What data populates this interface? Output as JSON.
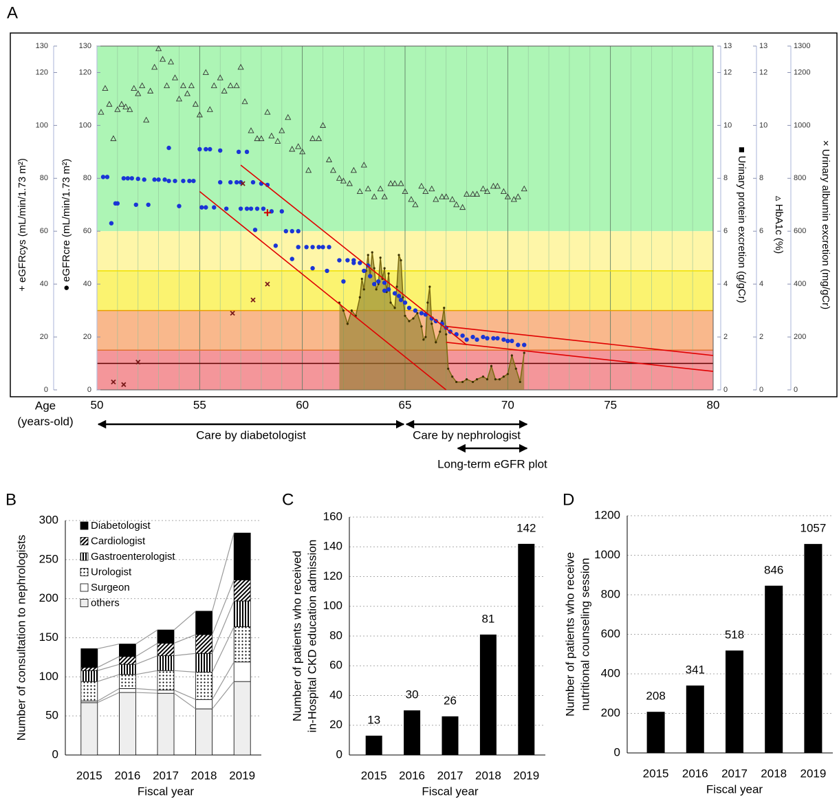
{
  "chart_data": [
    {
      "type": "scatter",
      "panel": "A",
      "xlabel": [
        "Age",
        "(years-old)"
      ],
      "xlim": [
        50,
        80
      ],
      "xticks": [
        50,
        55,
        60,
        65,
        70,
        75,
        80
      ],
      "xminor": 1,
      "y_axes": [
        {
          "label": "+ eGFRcys (mL/min/1.73 m²)",
          "color": "#e00000",
          "lim": [
            0,
            130
          ],
          "ticks": [
            0,
            20,
            40,
            60,
            80,
            100,
            120,
            130
          ],
          "side": "left"
        },
        {
          "label": "● eGFRcre (mL/min/1.73 m²)",
          "color": "#1a35d6",
          "lim": [
            0,
            130
          ],
          "ticks": [
            0,
            20,
            40,
            60,
            80,
            100,
            120,
            130
          ],
          "side": "left"
        },
        {
          "label": "■ Urinary protein excretion (g/gCr)",
          "color": "#7a6a10",
          "lim": [
            0,
            13
          ],
          "ticks": [
            0,
            2,
            4,
            6,
            8,
            10,
            12,
            13
          ],
          "side": "right"
        },
        {
          "label": "▵ HbA1c (%)",
          "color": "#000000",
          "lim": [
            0,
            13
          ],
          "ticks": [
            0,
            2,
            4,
            6,
            8,
            10,
            12,
            13
          ],
          "side": "right"
        },
        {
          "label": "× Urinary albumin excretion (mg/gCr)",
          "color": "#000000",
          "lim": [
            0,
            1300
          ],
          "ticks": [
            0,
            200,
            400,
            600,
            800,
            1000,
            1200,
            1300
          ],
          "side": "right"
        }
      ],
      "bands": [
        {
          "from": 60,
          "to": 130,
          "color": "#adf5b5"
        },
        {
          "from": 45,
          "to": 60,
          "color": "#fef6a8"
        },
        {
          "from": 30,
          "to": 45,
          "color": "#fbf370"
        },
        {
          "from": 15,
          "to": 30,
          "color": "#f9b88c"
        },
        {
          "from": 0,
          "to": 15,
          "color": "#f4969a"
        }
      ],
      "hlines": [
        {
          "value": 45,
          "color": "#f0e000"
        },
        {
          "value": 30,
          "color": "#e8a000"
        },
        {
          "value": 15,
          "color": "#e07030"
        },
        {
          "value": 10,
          "color": "#600000"
        }
      ],
      "series": [
        {
          "marker": "area",
          "color": "#7a6a10",
          "axis": 2,
          "x": [
            61.8,
            62,
            62.2,
            62.4,
            62.6,
            62.8,
            62.9,
            63,
            63.1,
            63.2,
            63.3,
            63.4,
            63.5,
            63.6,
            63.7,
            63.8,
            63.9,
            64,
            64.1,
            64.2,
            64.3,
            64.5,
            64.6,
            64.7,
            64.8,
            64.9,
            65,
            65.2,
            65.4,
            65.6,
            65.8,
            65.9,
            66,
            66.1,
            66.2,
            66.3,
            66.5,
            66.7,
            66.8,
            66.9,
            67,
            67.1,
            67.3,
            67.5,
            67.8,
            68,
            68.3,
            68.5,
            68.8,
            69,
            69.2,
            69.4,
            69.6,
            69.8,
            70,
            70.2,
            70.4,
            70.6,
            70.8
          ],
          "values": [
            3.3,
            3,
            2.5,
            3,
            2.8,
            3.5,
            4.2,
            3.8,
            4.5,
            5.1,
            4.3,
            5.2,
            4.6,
            3.8,
            4,
            5,
            4.2,
            4.6,
            3.7,
            4.4,
            3.3,
            3.1,
            3.9,
            5.1,
            4.9,
            3.5,
            2.8,
            2.6,
            2.7,
            2.9,
            2.4,
            1.9,
            2,
            3.3,
            3.9,
            2.5,
            1.8,
            2.2,
            2.6,
            3.1,
            2.1,
            0.8,
            0.5,
            0.3,
            0.3,
            0.4,
            0.3,
            0.4,
            0.5,
            0.4,
            0.9,
            0.4,
            0.4,
            0.5,
            0.6,
            1.3,
            0.8,
            0.3,
            1.4
          ]
        },
        {
          "marker": "triangle",
          "color": "#333333",
          "axis": 3,
          "x": [
            50.2,
            50.4,
            50.6,
            50.8,
            51,
            51.2,
            51.4,
            51.6,
            51.8,
            52,
            52.2,
            52.4,
            52.6,
            52.8,
            53,
            53.2,
            53.4,
            53.6,
            53.8,
            54,
            54.2,
            54.4,
            54.6,
            54.8,
            55,
            55.3,
            55.5,
            55.7,
            56,
            56.2,
            56.5,
            56.8,
            57,
            57.2,
            57.5,
            57.8,
            58,
            58.3,
            58.5,
            58.8,
            59,
            59.3,
            59.5,
            59.8,
            60,
            60.3,
            60.5,
            60.8,
            61,
            61.3,
            61.5,
            61.8,
            62,
            62.3,
            62.5,
            62.8,
            63,
            63.2,
            63.5,
            63.8,
            64,
            64.3,
            64.5,
            64.8,
            65,
            65.3,
            65.5,
            65.8,
            66,
            66.3,
            66.5,
            66.8,
            67,
            67.3,
            67.5,
            67.8,
            68,
            68.3,
            68.5,
            68.8,
            69,
            69.3,
            69.5,
            69.8,
            70,
            70.3,
            70.5,
            70.8
          ],
          "values": [
            10.5,
            11.4,
            10.8,
            9.5,
            10.6,
            10.8,
            10.7,
            10.6,
            11.4,
            11.2,
            11.5,
            10.2,
            11.3,
            12.2,
            12.9,
            12.5,
            11.5,
            12.4,
            11.8,
            11,
            11.5,
            11.2,
            11.5,
            10.8,
            10.4,
            12,
            10.6,
            11.5,
            11.8,
            11.3,
            11.5,
            11.5,
            12.2,
            10.9,
            9.8,
            9.5,
            9.5,
            10.5,
            9.6,
            9.4,
            9.8,
            10.3,
            9.1,
            9.2,
            9,
            8.3,
            9.5,
            9.5,
            10,
            8.7,
            8.3,
            8,
            7.9,
            7.8,
            8.3,
            7.5,
            8.5,
            7.6,
            7.3,
            7.6,
            7.3,
            7.8,
            7.8,
            7.8,
            7.5,
            7.2,
            7,
            7.7,
            7.5,
            7.6,
            7.2,
            7.3,
            7.3,
            7.2,
            7,
            6.9,
            7.4,
            7.4,
            7.4,
            7.6,
            7.5,
            7.7,
            7.7,
            7.5,
            7.3,
            7.2,
            7.3,
            7.6
          ]
        },
        {
          "marker": "dot",
          "color": "#1a35d6",
          "axis": 1,
          "x": [
            50.3,
            50.5,
            50.7,
            50.9,
            51,
            51.3,
            51.5,
            51.7,
            51.9,
            52,
            52.3,
            52.5,
            52.8,
            53,
            53.3,
            53.5,
            53.5,
            53.8,
            54,
            54.2,
            54.5,
            54.7,
            55,
            55.3,
            55.5,
            55.1,
            55.3,
            55.7,
            56,
            56,
            56.3,
            56.5,
            56.8,
            56.9,
            57,
            57,
            57.3,
            57.5,
            57.6,
            57.8,
            58,
            58.3,
            58.1,
            57.3,
            57.7,
            58.5,
            58.7,
            59,
            59.2,
            59.5,
            59.8,
            59.5,
            59.8,
            60.2,
            60.5,
            60.8,
            61,
            61.3,
            60.5,
            61.2,
            61.8,
            62.2,
            62.5,
            62,
            62.5,
            62.8,
            63,
            63.2,
            63.3,
            63.5,
            63.7,
            64,
            64,
            64.2,
            64.5,
            64.7,
            64.8,
            65,
            65.2,
            65.5,
            65.8,
            66,
            66.3,
            66.5,
            66.8,
            67,
            67.2,
            67.5,
            67.8,
            68,
            68.3,
            68.5,
            68.8,
            69,
            69.3,
            69.5,
            69.8,
            70,
            70.2,
            70.5,
            70.8
          ],
          "values": [
            80.5,
            80.5,
            63,
            70.5,
            70.5,
            80,
            80,
            80,
            70,
            79.8,
            79.5,
            70,
            79.5,
            79.5,
            79.5,
            91.5,
            79,
            79,
            69.5,
            79,
            79,
            79,
            91,
            91,
            91,
            69,
            69,
            69,
            90.5,
            78.5,
            68.5,
            78.5,
            78.5,
            90,
            78.5,
            68.5,
            68.5,
            68.5,
            78.5,
            68.5,
            78,
            77.5,
            68.5,
            90,
            60.5,
            67.5,
            54.5,
            67.5,
            60,
            60,
            60,
            49.5,
            54,
            54,
            54,
            54,
            54,
            54,
            46,
            45,
            49,
            49,
            49,
            41,
            48,
            48,
            45,
            47,
            43,
            40,
            41,
            40.5,
            37.5,
            38,
            36.5,
            35.5,
            34,
            33,
            31,
            30,
            29,
            28.5,
            27,
            26,
            25,
            23.5,
            22,
            21,
            20.5,
            19,
            20,
            19,
            20,
            19.5,
            19.5,
            19.5,
            19,
            18.5,
            18.5,
            17,
            17
          ]
        },
        {
          "marker": "cross",
          "color": "#7a1a1a",
          "axis": 4,
          "x": [
            50.8,
            51.3,
            52,
            56.6,
            57.1,
            57.6,
            58.3
          ],
          "values": [
            30,
            20,
            105,
            290,
            780,
            340,
            400
          ]
        },
        {
          "marker": "plus",
          "color": "#d00000",
          "axis": 0,
          "x": [
            58.3
          ],
          "values": [
            67
          ]
        }
      ],
      "trend_lines": {
        "color": "#e00000",
        "axis": 1,
        "lines": [
          {
            "x": [
              55,
              67
            ],
            "y": [
              75,
              0
            ]
          },
          {
            "x": [
              57,
              68
            ],
            "y": [
              85,
              17
            ]
          },
          {
            "x": [
              67,
              80
            ],
            "y": [
              24,
              13
            ]
          },
          {
            "x": [
              67,
              80
            ],
            "y": [
              18,
              7
            ]
          }
        ]
      },
      "periods": [
        {
          "label": "Care by diabetologist",
          "x": [
            50,
            65
          ]
        },
        {
          "label": "Care by nephrologist",
          "x": [
            65,
            71
          ]
        },
        {
          "label": "Long-term eGFR plot",
          "x": [
            67.5,
            71
          ]
        }
      ]
    },
    {
      "type": "stacked_bar",
      "panel": "B",
      "ylabel": [
        "Number of consultation to nephrologists"
      ],
      "xlabel": "Fiscal year",
      "categories": [
        "2015",
        "2016",
        "2017",
        "2018",
        "2019"
      ],
      "ylim": [
        0,
        300
      ],
      "yticks": [
        0,
        50,
        100,
        150,
        200,
        250,
        300
      ],
      "grid": true,
      "series": [
        {
          "name": "Diabetologist",
          "color": "#000000",
          "pattern": "solid",
          "values": [
            24,
            16,
            17,
            30,
            60
          ]
        },
        {
          "name": "Cardiologist",
          "color": "#ffffff",
          "pattern": "diagonal",
          "values": [
            4,
            10,
            16,
            24,
            27
          ]
        },
        {
          "name": "Gastroenterologist",
          "color": "#ffffff",
          "pattern": "vstripes",
          "values": [
            14,
            13,
            19,
            24,
            33
          ]
        },
        {
          "name": "Urologist",
          "color": "#ffffff",
          "pattern": "dots",
          "values": [
            25,
            18,
            25,
            35,
            45
          ]
        },
        {
          "name": "Surgeon",
          "color": "#ffffff",
          "pattern": "solid",
          "values": [
            2,
            5,
            4,
            12,
            25
          ]
        },
        {
          "name": "others",
          "color": "#eeeeee",
          "pattern": "solid",
          "values": [
            67,
            80,
            79,
            59,
            94
          ]
        }
      ]
    },
    {
      "type": "bar",
      "panel": "C",
      "ylabel": [
        "Number of patients  who received",
        "in-Hospital CKD education admission"
      ],
      "xlabel": "Fiscal year",
      "categories": [
        "2015",
        "2016",
        "2017",
        "2018",
        "2019"
      ],
      "values": [
        13,
        30,
        26,
        81,
        142
      ],
      "color": "#000000",
      "ylim": [
        0,
        160
      ],
      "yticks": [
        0,
        20,
        40,
        60,
        80,
        100,
        120,
        140,
        160
      ],
      "grid": true
    },
    {
      "type": "bar",
      "panel": "D",
      "ylabel": [
        "Number of patients who receive",
        "nutritional counseling session"
      ],
      "xlabel": "Fiscal year",
      "categories": [
        "2015",
        "2016",
        "2017",
        "2018",
        "2019"
      ],
      "values": [
        208,
        341,
        518,
        846,
        1057
      ],
      "color": "#000000",
      "ylim": [
        0,
        1200
      ],
      "yticks": [
        0,
        200,
        400,
        600,
        800,
        1000,
        1200
      ],
      "grid": true
    }
  ]
}
